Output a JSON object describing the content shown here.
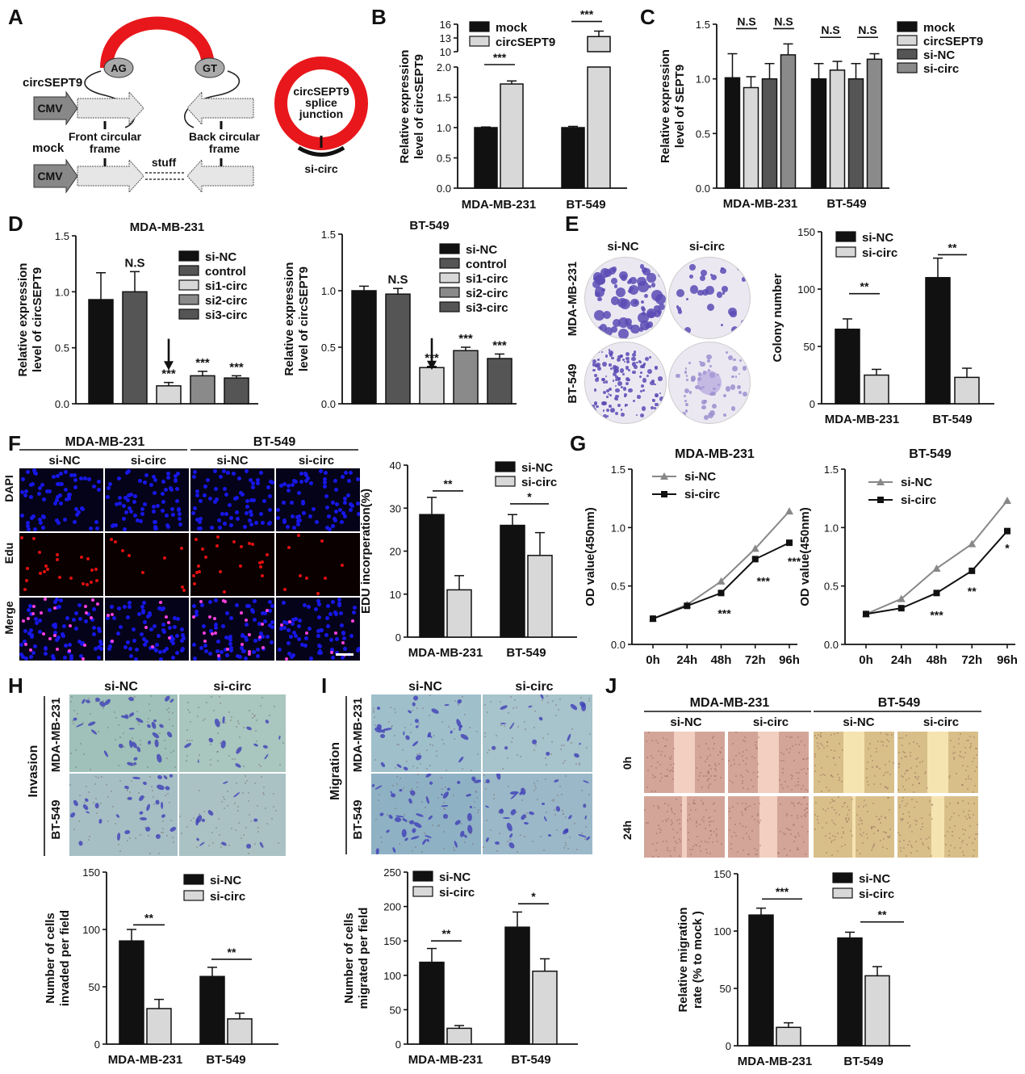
{
  "panel_letters": [
    "A",
    "B",
    "C",
    "D",
    "E",
    "F",
    "G",
    "H",
    "I",
    "J"
  ],
  "colors": {
    "black": "#111111",
    "light": "#d8d8d8",
    "dark": "#555555",
    "mid": "#8a8a8a",
    "red": "#e8171b",
    "dapi": "#1717e6",
    "edu": "#e01010",
    "crystal": "#5b4bb5"
  },
  "panel_a": {
    "circ_label": "circSEPT9",
    "mock_label": "mock",
    "cmv": "CMV",
    "ag": "AG",
    "gt": "GT",
    "front_frame": "Front circular frame",
    "back_frame": "Back circular frame",
    "stuff": "stuff",
    "ring_label": [
      "circSEPT9",
      "splice",
      "junction"
    ],
    "si_label": "si-circ"
  },
  "chart_data": [
    {
      "id": "B",
      "type": "bar",
      "categories": [
        "MDA-MB-231",
        "BT-549"
      ],
      "series": [
        {
          "name": "mock",
          "values": [
            1.0,
            1.0
          ],
          "errors": [
            0.01,
            0.02
          ]
        },
        {
          "name": "circSEPT9",
          "values": [
            1.72,
            13.3
          ],
          "errors": [
            0.05,
            1.2
          ]
        }
      ],
      "ylabel": "Relative expression level of circSEPT9",
      "ylim": [
        0,
        16
      ],
      "axis_break": [
        2.0,
        10
      ],
      "yticks_lower": [
        "0.0",
        "0.5",
        "1.0",
        "1.5",
        "2.0"
      ],
      "yticks_upper": [
        "10",
        "13",
        "16"
      ],
      "annotations": [
        "***",
        "***"
      ],
      "legend": "top-left",
      "grid": false
    },
    {
      "id": "C1",
      "type": "bar",
      "title": "MDA-MB-231",
      "categories": [
        "si-NC",
        "control",
        "si1-circ",
        "si2-circ",
        "si3-circ"
      ],
      "values": [
        0.93,
        1.0,
        0.16,
        0.25,
        0.23
      ],
      "errors": [
        0.24,
        0.18,
        0.03,
        0.04,
        0.02
      ],
      "ylabel": "Relative expression level of circSEPT9",
      "ylim": [
        0,
        1.5
      ],
      "yticks": [
        "0.0",
        "0.5",
        "1.0",
        "1.5"
      ],
      "annotations": [
        "",
        "N.S",
        "***",
        "***",
        "***"
      ],
      "legend": "top-right",
      "grid": false
    },
    {
      "id": "C2",
      "type": "bar",
      "title": "BT-549",
      "categories": [
        "si-NC",
        "control",
        "si1-circ",
        "si2-circ",
        "si3-circ"
      ],
      "values": [
        1.0,
        0.97,
        0.32,
        0.47,
        0.4
      ],
      "errors": [
        0.04,
        0.05,
        0.01,
        0.03,
        0.04
      ],
      "ylabel": "Relative expression level of circSEPT9",
      "ylim": [
        0,
        1.5
      ],
      "yticks": [
        "0.0",
        "0.5",
        "1.0",
        "1.5"
      ],
      "annotations": [
        "",
        "N.S",
        "***",
        "***",
        "***"
      ],
      "legend": "top-right",
      "grid": false
    },
    {
      "id": "D",
      "type": "bar",
      "categories": [
        "MDA-MB-231",
        "BT-549"
      ],
      "series": [
        {
          "name": "mock",
          "values": [
            1.01,
            1.0
          ],
          "errors": [
            0.22,
            0.14
          ]
        },
        {
          "name": "circSEPT9",
          "values": [
            0.92,
            1.08
          ],
          "errors": [
            0.1,
            0.08
          ]
        },
        {
          "name": "si-NC",
          "values": [
            1.0,
            1.0
          ],
          "errors": [
            0.14,
            0.14
          ]
        },
        {
          "name": "si-circ",
          "values": [
            1.22,
            1.18
          ],
          "errors": [
            0.1,
            0.05
          ]
        }
      ],
      "ylabel": "Relative expression level of SEPT9",
      "ylim": [
        0,
        1.5
      ],
      "yticks": [
        "0.0",
        "0.5",
        "1.0",
        "1.5"
      ],
      "annotations": [
        "N.S",
        "N.S",
        "N.S",
        "N.S"
      ],
      "legend": "right",
      "grid": false
    },
    {
      "id": "E",
      "type": "bar",
      "categories": [
        "MDA-MB-231",
        "BT-549"
      ],
      "series": [
        {
          "name": "si-NC",
          "values": [
            65,
            110
          ],
          "errors": [
            9,
            17
          ]
        },
        {
          "name": "si-circ",
          "values": [
            25,
            23
          ],
          "errors": [
            5,
            8
          ]
        }
      ],
      "ylabel": "Colony number",
      "ylim": [
        0,
        150
      ],
      "yticks": [
        "0",
        "50",
        "100",
        "150"
      ],
      "annotations": [
        "**",
        "**"
      ],
      "legend": "top-left",
      "grid": false
    },
    {
      "id": "F",
      "type": "bar",
      "categories": [
        "MDA-MB-231",
        "BT-549"
      ],
      "series": [
        {
          "name": "si-NC",
          "values": [
            28.5,
            26
          ],
          "errors": [
            4,
            2.5
          ]
        },
        {
          "name": "si-circ",
          "values": [
            11,
            19
          ],
          "errors": [
            3.3,
            5.3
          ]
        }
      ],
      "ylabel": "EDU incorperation(%)",
      "ylim": [
        0,
        40
      ],
      "yticks": [
        "0",
        "10",
        "20",
        "30",
        "40"
      ],
      "annotations": [
        "**",
        "*"
      ],
      "legend": "top-right",
      "grid": false
    },
    {
      "id": "G1",
      "type": "line",
      "title": "MDA-MB-231",
      "x": [
        "0h",
        "24h",
        "48h",
        "72h",
        "96h"
      ],
      "series": [
        {
          "name": "si-NC",
          "values": [
            0.22,
            0.34,
            0.54,
            0.82,
            1.14
          ]
        },
        {
          "name": "si-circ",
          "values": [
            0.22,
            0.33,
            0.44,
            0.73,
            0.87
          ]
        }
      ],
      "ylabel": "OD value(450nm)",
      "ylim": [
        0,
        1.5
      ],
      "yticks": [
        "0.0",
        "0.5",
        "1.0",
        "1.5"
      ],
      "annotations": [
        "",
        "",
        "***",
        "***",
        "***"
      ],
      "legend": "top-left",
      "grid": false
    },
    {
      "id": "G2",
      "type": "line",
      "title": "BT-549",
      "x": [
        "0h",
        "24h",
        "48h",
        "72h",
        "96h"
      ],
      "series": [
        {
          "name": "si-NC",
          "values": [
            0.26,
            0.39,
            0.65,
            0.86,
            1.23
          ]
        },
        {
          "name": "si-circ",
          "values": [
            0.26,
            0.31,
            0.44,
            0.63,
            0.97
          ]
        }
      ],
      "errors_sinc": [
        0.01,
        0.01,
        0.02,
        0.05,
        0.03
      ],
      "errors_sicirc": [
        0.01,
        0.01,
        0.02,
        0.02,
        0.08
      ],
      "ylabel": "OD value(450nm)",
      "ylim": [
        0,
        1.5
      ],
      "yticks": [
        "0.0",
        "0.5",
        "1.0",
        "1.5"
      ],
      "annotations": [
        "",
        "",
        "***",
        "**",
        "*"
      ],
      "legend": "top-left",
      "grid": false
    },
    {
      "id": "H",
      "type": "bar",
      "categories": [
        "MDA-MB-231",
        "BT-549"
      ],
      "series": [
        {
          "name": "si-NC",
          "values": [
            90,
            59
          ],
          "errors": [
            10,
            8
          ]
        },
        {
          "name": "si-circ",
          "values": [
            31,
            22
          ],
          "errors": [
            8,
            5
          ]
        }
      ],
      "ylabel": "Number of cells invaded per field",
      "ylim": [
        0,
        150
      ],
      "yticks": [
        "0",
        "50",
        "100",
        "150"
      ],
      "annotations": [
        "**",
        "**"
      ],
      "legend": "top-right",
      "grid": false
    },
    {
      "id": "I",
      "type": "bar",
      "categories": [
        "MDA-MB-231",
        "BT-549"
      ],
      "series": [
        {
          "name": "si-NC",
          "values": [
            119,
            170
          ],
          "errors": [
            20,
            22
          ]
        },
        {
          "name": "si-circ",
          "values": [
            23,
            106
          ],
          "errors": [
            4,
            18
          ]
        }
      ],
      "ylabel": "Number of cells migrated per field",
      "ylim": [
        0,
        250
      ],
      "yticks": [
        "0",
        "50",
        "100",
        "150",
        "200",
        "250"
      ],
      "annotations": [
        "**",
        "*"
      ],
      "legend": "top-left",
      "grid": false
    },
    {
      "id": "J",
      "type": "bar",
      "categories": [
        "MDA-MB-231",
        "BT-549"
      ],
      "series": [
        {
          "name": "si-NC",
          "values": [
            114,
            94
          ],
          "errors": [
            6,
            5
          ]
        },
        {
          "name": "si-circ",
          "values": [
            16,
            61
          ],
          "errors": [
            4,
            8
          ]
        }
      ],
      "ylabel": "Relative migration rate (% to mock )",
      "ylim": [
        0,
        150
      ],
      "yticks": [
        "0",
        "50",
        "100",
        "150"
      ],
      "annotations": [
        "***",
        "**"
      ],
      "legend": "top-right",
      "grid": false
    }
  ],
  "panel_e": {
    "col_labels": [
      "si-NC",
      "si-circ"
    ],
    "row_labels": [
      "MDA-MB-231",
      "BT-549"
    ]
  },
  "panel_f": {
    "groups": [
      "MDA-MB-231",
      "BT-549"
    ],
    "col_labels": [
      "si-NC",
      "si-circ",
      "si-NC",
      "si-circ"
    ],
    "row_labels": [
      "DAPI",
      "Edu",
      "Merge"
    ]
  },
  "panel_h": {
    "col_labels": [
      "si-NC",
      "si-circ"
    ],
    "row_labels": [
      "MDA-MB-231",
      "BT-549"
    ],
    "side_label": "Invasion"
  },
  "panel_i": {
    "col_labels": [
      "si-NC",
      "si-circ"
    ],
    "row_labels": [
      "MDA-MB-231",
      "BT-549"
    ],
    "side_label": "Migration"
  },
  "panel_j": {
    "groups": [
      "MDA-MB-231",
      "BT-549"
    ],
    "col_labels": [
      "si-NC",
      "si-circ",
      "si-NC",
      "si-circ"
    ],
    "row_labels": [
      "0h",
      "24h"
    ]
  }
}
